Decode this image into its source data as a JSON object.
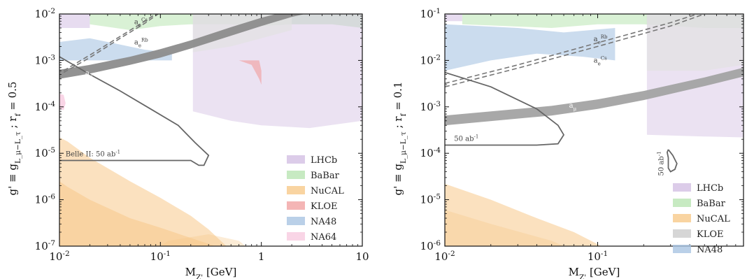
{
  "chart_data": [
    {
      "type": "area",
      "panel": "left",
      "xlabel": "M_{Z'} [GeV]",
      "ylabel": "g' ≡ g_{L_μ−L_τ} ;   r_f = 0.5",
      "xscale": "log",
      "yscale": "log",
      "xlim": [
        0.01,
        10
      ],
      "ylim": [
        1e-07,
        0.01
      ],
      "x_ticks": [
        {
          "value": 0.01,
          "label": "10^{-2}"
        },
        {
          "value": 0.1,
          "label": "10^{-1}"
        },
        {
          "value": 1,
          "label": "1"
        },
        {
          "value": 10,
          "label": "10"
        }
      ],
      "y_ticks": [
        {
          "value": 1e-07,
          "label": "10^{-7}"
        },
        {
          "value": 1e-06,
          "label": "10^{-6}"
        },
        {
          "value": 1e-05,
          "label": "10^{-5}"
        },
        {
          "value": 0.0001,
          "label": "10^{-4}"
        },
        {
          "value": 0.001,
          "label": "10^{-3}"
        },
        {
          "value": 0.01,
          "label": "10^{-2}"
        }
      ],
      "legend_position": "lower right",
      "legend": [
        "LHCb",
        "BaBar",
        "NuCAL",
        "KLOE",
        "NA48",
        "NA64"
      ],
      "regions": [
        {
          "name": "NuCAL",
          "color": "#f7c98a",
          "opacity": 0.55,
          "points": [
            [
              0.01,
              1e-07
            ],
            [
              0.01,
              2.5e-06
            ],
            [
              0.012,
              1.9e-06
            ],
            [
              0.02,
              1e-06
            ],
            [
              0.05,
              4e-07
            ],
            [
              0.1,
              2.5e-07
            ],
            [
              0.2,
              1.5e-07
            ],
            [
              0.35,
              1e-07
            ]
          ]
        },
        {
          "name": "NuCAL",
          "color": "#f7c98a",
          "opacity": 0.55,
          "points": [
            [
              0.01,
              1e-07
            ],
            [
              0.01,
              2.2e-05
            ],
            [
              0.012,
              1.8e-05
            ],
            [
              0.02,
              8e-06
            ],
            [
              0.05,
              2.5e-06
            ],
            [
              0.1,
              1.1e-06
            ],
            [
              0.2,
              4.5e-07
            ],
            [
              0.3,
              2.3e-07
            ],
            [
              0.45,
              1e-07
            ]
          ]
        },
        {
          "name": "NuCAL",
          "color": "#f7c98a",
          "opacity": 0.35,
          "points": [
            [
              0.1,
              1e-07
            ],
            [
              0.12,
              1.3e-07
            ],
            [
              0.3,
              1.8e-07
            ],
            [
              0.6,
              1.3e-07
            ],
            [
              0.7,
              1e-07
            ]
          ]
        },
        {
          "name": "NA48",
          "color": "#a9c4e2",
          "opacity": 0.6,
          "points": [
            [
              0.01,
              0.001
            ],
            [
              0.01,
              0.0025
            ],
            [
              0.02,
              0.003
            ],
            [
              0.04,
              0.0022
            ],
            [
              0.07,
              0.0017
            ],
            [
              0.12,
              0.0015
            ],
            [
              0.13,
              0.0014
            ],
            [
              0.13,
              0.001
            ]
          ]
        },
        {
          "name": "BaBar",
          "color": "#b9e5b3",
          "opacity": 0.55,
          "points": [
            [
              0.02,
              0.01
            ],
            [
              0.02,
              0.006
            ],
            [
              0.05,
              0.0045
            ],
            [
              0.1,
              0.0055
            ],
            [
              0.2,
              0.006
            ],
            [
              0.5,
              0.006
            ],
            [
              1,
              0.0055
            ],
            [
              2,
              0.006
            ],
            [
              5,
              0.006
            ],
            [
              10,
              0.005
            ],
            [
              10,
              0.01
            ]
          ]
        },
        {
          "name": "LHCb",
          "color": "#d3bfe3",
          "opacity": 0.55,
          "points": [
            [
              0.01,
              0.01
            ],
            [
              0.01,
              0.005
            ],
            [
              0.02,
              0.005
            ],
            [
              0.02,
              0.01
            ]
          ]
        },
        {
          "name": "LHCb",
          "color": "#d3bfe3",
          "opacity": 0.45,
          "points": [
            [
              0.21,
              0.01
            ],
            [
              0.21,
              8e-05
            ],
            [
              0.5,
              5e-05
            ],
            [
              1,
              4e-05
            ],
            [
              3,
              3.5e-05
            ],
            [
              10,
              5e-05
            ],
            [
              10,
              0.01
            ]
          ]
        },
        {
          "name": "LHCb",
          "color": "#e2e2e2",
          "opacity": 0.7,
          "points": [
            [
              0.21,
              0.01
            ],
            [
              0.21,
              0.0015
            ],
            [
              0.5,
              0.002
            ],
            [
              1,
              0.003
            ],
            [
              2,
              0.0045
            ],
            [
              2,
              0.01
            ]
          ]
        },
        {
          "name": "KLOE",
          "color": "#f1a2a2",
          "opacity": 0.65,
          "points": [
            [
              0.6,
              0.001
            ],
            [
              0.8,
              0.0008
            ],
            [
              0.95,
              0.0004
            ],
            [
              1,
              0.0003
            ],
            [
              1,
              0.0006
            ],
            [
              0.95,
              0.001
            ]
          ]
        },
        {
          "name": "NA64",
          "color": "#f8cbe0",
          "opacity": 0.8,
          "points": [
            [
              0.01,
              0.00019
            ],
            [
              0.011,
              0.00018
            ],
            [
              0.0115,
              0.00012
            ],
            [
              0.011,
              8.5e-05
            ],
            [
              0.01,
              9e-05
            ]
          ]
        }
      ],
      "amu_band": {
        "lower": [
          [
            0.01,
            0.0004
          ],
          [
            0.02,
            0.00052
          ],
          [
            0.05,
            0.0008
          ],
          [
            0.1,
            0.00115
          ],
          [
            0.2,
            0.0018
          ],
          [
            0.5,
            0.0034
          ],
          [
            1,
            0.0055
          ],
          [
            2,
            0.0086
          ],
          [
            2.7,
            0.01
          ]
        ],
        "upper": [
          [
            0.01,
            0.00063
          ],
          [
            0.02,
            0.0008
          ],
          [
            0.05,
            0.0012
          ],
          [
            0.1,
            0.00175
          ],
          [
            0.2,
            0.0027
          ],
          [
            0.5,
            0.0052
          ],
          [
            1,
            0.0083
          ],
          [
            1.4,
            0.01
          ]
        ],
        "color": "#8c8c8c",
        "label": "a_μ"
      },
      "dashed_lines": [
        {
          "label": "a_e^{Cs}",
          "points": [
            [
              0.011,
              0.0006
            ],
            [
              0.02,
              0.0013
            ],
            [
              0.04,
              0.0033
            ],
            [
              0.07,
              0.007
            ],
            [
              0.09,
              0.01
            ]
          ]
        },
        {
          "label": "a_e^{Rb}",
          "points": [
            [
              0.011,
              0.00055
            ],
            [
              0.02,
              0.00115
            ],
            [
              0.04,
              0.003
            ],
            [
              0.07,
              0.0063
            ],
            [
              0.095,
              0.01
            ]
          ]
        }
      ],
      "contour": {
        "label": "Belle II: 50 ab^{-1}",
        "points": [
          [
            0.01,
            0.0012
          ],
          [
            0.02,
            0.0005
          ],
          [
            0.04,
            0.00022
          ],
          [
            0.08,
            9e-05
          ],
          [
            0.15,
            4e-05
          ],
          [
            0.22,
            1.7e-05
          ],
          [
            0.3,
            9e-06
          ],
          [
            0.27,
            5.5e-06
          ],
          [
            0.24,
            5.5e-06
          ],
          [
            0.2,
            7e-06
          ],
          [
            0.1,
            7e-06
          ],
          [
            0.05,
            7e-06
          ],
          [
            0.01,
            7e-06
          ]
        ]
      }
    },
    {
      "type": "area",
      "panel": "right",
      "xlabel": "M_{Z'} [GeV]",
      "ylabel": "g' ≡ g_{L_μ−L_τ} ;   r_f = 0.1",
      "xscale": "log",
      "yscale": "log",
      "xlim": [
        0.01,
        0.9
      ],
      "ylim": [
        1e-06,
        0.1
      ],
      "x_ticks": [
        {
          "value": 0.01,
          "label": "10^{-2}"
        },
        {
          "value": 0.1,
          "label": "10^{-1}"
        }
      ],
      "y_ticks": [
        {
          "value": 1e-06,
          "label": "10^{-6}"
        },
        {
          "value": 1e-05,
          "label": "10^{-5}"
        },
        {
          "value": 0.0001,
          "label": "10^{-4}"
        },
        {
          "value": 0.001,
          "label": "10^{-3}"
        },
        {
          "value": 0.01,
          "label": "10^{-2}"
        },
        {
          "value": 0.1,
          "label": "10^{-1}"
        }
      ],
      "legend_position": "lower right",
      "legend": [
        "LHCb",
        "BaBar",
        "NuCAL",
        "KLOE",
        "NA48"
      ],
      "regions": [
        {
          "name": "NuCAL",
          "color": "#f7c98a",
          "opacity": 0.55,
          "points": [
            [
              0.01,
              1e-06
            ],
            [
              0.01,
              2.2e-05
            ],
            [
              0.02,
              1e-05
            ],
            [
              0.04,
              4e-06
            ],
            [
              0.07,
              2e-06
            ],
            [
              0.1,
              1.1e-06
            ],
            [
              0.105,
              1e-06
            ]
          ]
        },
        {
          "name": "NuCAL",
          "color": "#f7c98a",
          "opacity": 0.35,
          "points": [
            [
              0.01,
              1e-06
            ],
            [
              0.01,
              6e-06
            ],
            [
              0.02,
              3e-06
            ],
            [
              0.05,
              1.3e-06
            ],
            [
              0.06,
              1e-06
            ]
          ]
        },
        {
          "name": "NA48",
          "color": "#a9c4e2",
          "opacity": 0.6,
          "points": [
            [
              0.01,
              0.006
            ],
            [
              0.01,
              0.06
            ],
            [
              0.03,
              0.05
            ],
            [
              0.06,
              0.04
            ],
            [
              0.13,
              0.05
            ],
            [
              0.13,
              0.01
            ],
            [
              0.08,
              0.012
            ],
            [
              0.04,
              0.014
            ],
            [
              0.02,
              0.01
            ]
          ]
        },
        {
          "name": "BaBar",
          "color": "#b9e5b3",
          "opacity": 0.55,
          "points": [
            [
              0.013,
              0.1
            ],
            [
              0.013,
              0.06
            ],
            [
              0.05,
              0.05
            ],
            [
              0.1,
              0.06
            ],
            [
              0.2,
              0.06
            ],
            [
              0.5,
              0.05
            ],
            [
              0.9,
              0.05
            ],
            [
              0.9,
              0.1
            ]
          ]
        },
        {
          "name": "LHCb",
          "color": "#d3bfe3",
          "opacity": 0.55,
          "points": [
            [
              0.01,
              0.1
            ],
            [
              0.01,
              0.07
            ],
            [
              0.013,
              0.07
            ],
            [
              0.013,
              0.1
            ]
          ]
        },
        {
          "name": "LHCb",
          "color": "#d3bfe3",
          "opacity": 0.45,
          "points": [
            [
              0.21,
              0.1
            ],
            [
              0.21,
              0.00025
            ],
            [
              0.5,
              0.00023
            ],
            [
              0.9,
              0.00022
            ],
            [
              0.9,
              0.1
            ]
          ]
        },
        {
          "name": "LHCb",
          "color": "#e2e2e2",
          "opacity": 0.7,
          "points": [
            [
              0.21,
              0.1
            ],
            [
              0.21,
              0.006
            ],
            [
              0.5,
              0.006
            ],
            [
              0.9,
              0.008
            ],
            [
              0.9,
              0.1
            ]
          ]
        }
      ],
      "amu_band": {
        "lower": [
          [
            0.01,
            0.0004
          ],
          [
            0.05,
            0.00065
          ],
          [
            0.1,
            0.0009
          ],
          [
            0.2,
            0.0014
          ],
          [
            0.5,
            0.0028
          ],
          [
            0.9,
            0.0045
          ]
        ],
        "upper": [
          [
            0.01,
            0.00065
          ],
          [
            0.05,
            0.00105
          ],
          [
            0.1,
            0.00145
          ],
          [
            0.2,
            0.0022
          ],
          [
            0.5,
            0.0043
          ],
          [
            0.9,
            0.007
          ]
        ],
        "color": "#a3a3a3",
        "label": "a_μ"
      },
      "dashed_lines": [
        {
          "label": "a_e^{Rb}",
          "points": [
            [
              0.01,
              0.0032
            ],
            [
              0.03,
              0.008
            ],
            [
              0.1,
              0.024
            ],
            [
              0.3,
              0.065
            ],
            [
              0.45,
              0.1
            ]
          ]
        },
        {
          "label": "a_e^{Cs}",
          "points": [
            [
              0.01,
              0.0027
            ],
            [
              0.03,
              0.0068
            ],
            [
              0.1,
              0.02
            ],
            [
              0.3,
              0.055
            ],
            [
              0.5,
              0.1
            ]
          ]
        }
      ],
      "contour": {
        "label": "50 ab^{-1}",
        "points": [
          [
            0.01,
            0.0055
          ],
          [
            0.02,
            0.0027
          ],
          [
            0.04,
            0.0009
          ],
          [
            0.055,
            0.0004
          ],
          [
            0.06,
            0.00025
          ],
          [
            0.055,
            0.00016
          ],
          [
            0.04,
            0.00015
          ],
          [
            0.02,
            0.00015
          ],
          [
            0.01,
            0.00015
          ]
        ]
      },
      "contour2": {
        "label": "50 ab^{-1}",
        "points": [
          [
            0.29,
            0.00012
          ],
          [
            0.31,
            9e-05
          ],
          [
            0.33,
            6e-05
          ],
          [
            0.32,
            4.5e-05
          ],
          [
            0.3,
            4e-05
          ],
          [
            0.29,
            4.8e-05
          ],
          [
            0.29,
            8e-05
          ],
          [
            0.285,
            0.000105
          ],
          [
            0.29,
            0.00012
          ]
        ]
      }
    }
  ]
}
